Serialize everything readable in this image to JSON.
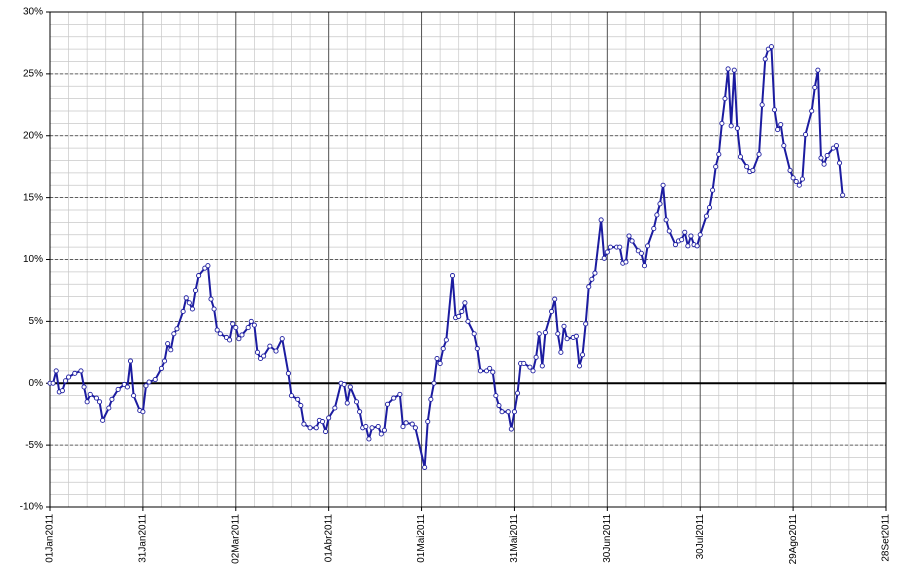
{
  "chart_data": {
    "type": "line",
    "x": [
      "2011-01-01",
      "2011-01-02",
      "2011-01-03",
      "2011-01-04",
      "2011-01-05",
      "2011-01-06",
      "2011-01-07",
      "2011-01-09",
      "2011-01-11",
      "2011-01-12",
      "2011-01-13",
      "2011-01-14",
      "2011-01-16",
      "2011-01-17",
      "2011-01-18",
      "2011-01-20",
      "2011-01-21",
      "2011-01-23",
      "2011-01-25",
      "2011-01-26",
      "2011-01-27",
      "2011-01-28",
      "2011-01-30",
      "2011-01-31",
      "2011-02-01",
      "2011-02-02",
      "2011-02-04",
      "2011-02-06",
      "2011-02-07",
      "2011-02-08",
      "2011-02-09",
      "2011-02-10",
      "2011-02-11",
      "2011-02-13",
      "2011-02-14",
      "2011-02-15",
      "2011-02-16",
      "2011-02-17",
      "2011-02-18",
      "2011-02-20",
      "2011-02-21",
      "2011-02-22",
      "2011-02-23",
      "2011-02-24",
      "2011-02-25",
      "2011-02-27",
      "2011-02-28",
      "2011-03-01",
      "2011-03-02",
      "2011-03-03",
      "2011-03-04",
      "2011-03-06",
      "2011-03-07",
      "2011-03-08",
      "2011-03-09",
      "2011-03-10",
      "2011-03-11",
      "2011-03-13",
      "2011-03-15",
      "2011-03-17",
      "2011-03-19",
      "2011-03-20",
      "2011-03-22",
      "2011-03-23",
      "2011-03-24",
      "2011-03-26",
      "2011-03-28",
      "2011-03-29",
      "2011-03-30",
      "2011-03-31",
      "2011-04-01",
      "2011-04-03",
      "2011-04-05",
      "2011-04-06",
      "2011-04-07",
      "2011-04-08",
      "2011-04-10",
      "2011-04-11",
      "2011-04-12",
      "2011-04-13",
      "2011-04-14",
      "2011-04-15",
      "2011-04-17",
      "2011-04-18",
      "2011-04-19",
      "2011-04-20",
      "2011-04-22",
      "2011-04-24",
      "2011-04-25",
      "2011-04-26",
      "2011-04-28",
      "2011-04-29",
      "2011-05-02",
      "2011-05-03",
      "2011-05-04",
      "2011-05-05",
      "2011-05-06",
      "2011-05-07",
      "2011-05-08",
      "2011-05-09",
      "2011-05-11",
      "2011-05-12",
      "2011-05-13",
      "2011-05-14",
      "2011-05-15",
      "2011-05-16",
      "2011-05-18",
      "2011-05-19",
      "2011-05-20",
      "2011-05-22",
      "2011-05-23",
      "2011-05-24",
      "2011-05-25",
      "2011-05-26",
      "2011-05-27",
      "2011-05-29",
      "2011-05-30",
      "2011-05-31",
      "2011-06-01",
      "2011-06-02",
      "2011-06-03",
      "2011-06-05",
      "2011-06-06",
      "2011-06-07",
      "2011-06-08",
      "2011-06-09",
      "2011-06-10",
      "2011-06-12",
      "2011-06-13",
      "2011-06-14",
      "2011-06-15",
      "2011-06-16",
      "2011-06-17",
      "2011-06-19",
      "2011-06-20",
      "2011-06-21",
      "2011-06-22",
      "2011-06-23",
      "2011-06-24",
      "2011-06-25",
      "2011-06-26",
      "2011-06-28",
      "2011-06-29",
      "2011-06-30",
      "2011-07-01",
      "2011-07-03",
      "2011-07-04",
      "2011-07-05",
      "2011-07-06",
      "2011-07-07",
      "2011-07-08",
      "2011-07-10",
      "2011-07-11",
      "2011-07-12",
      "2011-07-13",
      "2011-07-15",
      "2011-07-16",
      "2011-07-17",
      "2011-07-18",
      "2011-07-19",
      "2011-07-20",
      "2011-07-22",
      "2011-07-23",
      "2011-07-24",
      "2011-07-25",
      "2011-07-26",
      "2011-07-27",
      "2011-07-28",
      "2011-07-29",
      "2011-07-30",
      "2011-08-01",
      "2011-08-02",
      "2011-08-03",
      "2011-08-04",
      "2011-08-05",
      "2011-08-06",
      "2011-08-07",
      "2011-08-08",
      "2011-08-09",
      "2011-08-10",
      "2011-08-11",
      "2011-08-12",
      "2011-08-14",
      "2011-08-15",
      "2011-08-16",
      "2011-08-18",
      "2011-08-19",
      "2011-08-20",
      "2011-08-21",
      "2011-08-22",
      "2011-08-23",
      "2011-08-24",
      "2011-08-25",
      "2011-08-26",
      "2011-08-28",
      "2011-08-29",
      "2011-08-30",
      "2011-08-31",
      "2011-09-01",
      "2011-09-02",
      "2011-09-04",
      "2011-09-05",
      "2011-09-06",
      "2011-09-07",
      "2011-09-08",
      "2011-09-09",
      "2011-09-11",
      "2011-09-12",
      "2011-09-13",
      "2011-09-14"
    ],
    "series": [
      {
        "color": "#1c1ca0",
        "values": [
          0,
          0,
          1.0,
          -0.7,
          -0.6,
          0.2,
          0.5,
          0.8,
          1.0,
          -0.3,
          -1.5,
          -0.9,
          -1.2,
          -1.5,
          -3.0,
          -2.0,
          -1.3,
          -0.5,
          -0.1,
          -0.3,
          1.8,
          -1.0,
          -2.2,
          -2.3,
          -0.2,
          0.1,
          0.3,
          1.2,
          1.8,
          3.2,
          2.7,
          4.0,
          4.4,
          5.8,
          6.9,
          6.5,
          6.0,
          7.5,
          8.7,
          9.3,
          9.5,
          6.8,
          6.0,
          4.3,
          4.0,
          3.7,
          3.5,
          4.8,
          4.5,
          3.6,
          3.9,
          4.5,
          5.0,
          4.7,
          2.5,
          2.0,
          2.2,
          3.0,
          2.6,
          3.6,
          0.8,
          -1.0,
          -1.3,
          -1.8,
          -3.3,
          -3.6,
          -3.6,
          -3.0,
          -3.1,
          -3.9,
          -2.8,
          -2.0,
          0.0,
          -0.1,
          -1.6,
          -0.3,
          -1.5,
          -2.3,
          -3.6,
          -3.5,
          -4.5,
          -3.6,
          -3.5,
          -4.1,
          -3.8,
          -1.7,
          -1.2,
          -0.9,
          -3.5,
          -3.2,
          -3.3,
          -3.6,
          -6.8,
          -3.1,
          -1.3,
          0.0,
          2.0,
          1.6,
          2.8,
          3.5,
          8.7,
          5.3,
          5.4,
          5.8,
          6.5,
          5.0,
          4.0,
          2.8,
          1.0,
          1.0,
          1.2,
          0.9,
          -1.0,
          -1.8,
          -2.3,
          -2.3,
          -3.7,
          -2.3,
          -0.8,
          1.6,
          1.6,
          1.3,
          1.0,
          2.1,
          4.0,
          1.4,
          4.1,
          5.8,
          6.8,
          4.0,
          2.5,
          4.6,
          3.6,
          3.7,
          3.8,
          1.4,
          2.3,
          4.8,
          7.8,
          8.4,
          8.9,
          13.2,
          10.1,
          10.6,
          11.0,
          11.0,
          11.0,
          9.7,
          9.8,
          11.9,
          11.5,
          10.7,
          10.5,
          9.5,
          11.1,
          12.5,
          13.6,
          14.5,
          16.0,
          13.2,
          12.3,
          11.2,
          11.5,
          11.6,
          12.2,
          11.1,
          11.9,
          11.2,
          11.1,
          12.0,
          13.5,
          14.2,
          15.6,
          17.5,
          18.5,
          21.0,
          23.0,
          25.4,
          20.8,
          25.3,
          20.6,
          18.3,
          17.5,
          17.1,
          17.2,
          18.5,
          22.5,
          26.2,
          27.0,
          27.2,
          22.1,
          20.5,
          20.9,
          19.2,
          17.2,
          16.6,
          16.3,
          16.0,
          16.5,
          20.1,
          22.0,
          23.9,
          25.3,
          18.2,
          17.7,
          18.4,
          19.0,
          19.2,
          17.8,
          15.2
        ]
      }
    ],
    "xlim": [
      "2011-01-01",
      "2011-09-28"
    ],
    "xticks": [
      {
        "value": "2011-01-01",
        "label": "01Jan2011"
      },
      {
        "value": "2011-01-31",
        "label": "31Jan2011"
      },
      {
        "value": "2011-03-02",
        "label": "02Mar2011"
      },
      {
        "value": "2011-04-01",
        "label": "01Abr2011"
      },
      {
        "value": "2011-05-01",
        "label": "01Mai2011"
      },
      {
        "value": "2011-05-31",
        "label": "31Mai2011"
      },
      {
        "value": "2011-06-30",
        "label": "30Jun2011"
      },
      {
        "value": "2011-07-30",
        "label": "30Jul2011"
      },
      {
        "value": "2011-08-29",
        "label": "29Ago2011"
      },
      {
        "value": "2011-09-28",
        "label": "28Set2011"
      }
    ],
    "ylim": [
      -10,
      30
    ],
    "yticks": [
      {
        "value": -10,
        "label": "-10%"
      },
      {
        "value": -5,
        "label": "-5%"
      },
      {
        "value": 0,
        "label": "0%"
      },
      {
        "value": 5,
        "label": "5%"
      },
      {
        "value": 10,
        "label": "10%"
      },
      {
        "value": 15,
        "label": "15%"
      },
      {
        "value": 20,
        "label": "20%"
      },
      {
        "value": 25,
        "label": "25%"
      },
      {
        "value": 30,
        "label": "30%"
      }
    ],
    "grid": true,
    "markers": true
  }
}
